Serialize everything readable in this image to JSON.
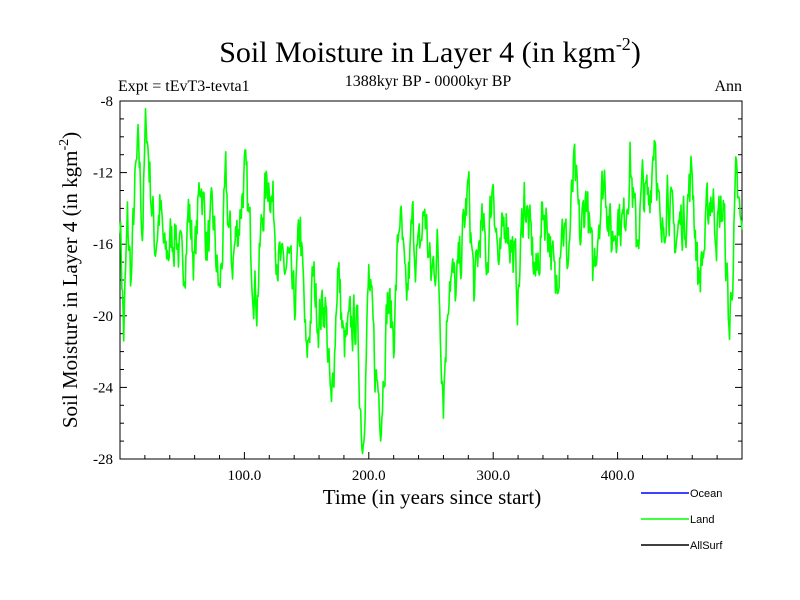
{
  "chart_data": {
    "type": "line",
    "title": "Soil Moisture in Layer 4 (in kgm",
    "title_exp": "-2",
    "title_close": ")",
    "experiment": "Expt = tEvT3-tevta1",
    "period": "1388kyr BP - 0000kyr BP",
    "season": "Ann",
    "xlabel": "Time (in years since start)",
    "ylabel": "Soil Moisture in Layer 4 (in kgm",
    "ylabel_exp": "-2",
    "ylabel_close": ")",
    "xlim": [
      0,
      500
    ],
    "ylim": [
      -28,
      -8
    ],
    "xticks": [
      {
        "v": 100,
        "label": "100.0"
      },
      {
        "v": 200,
        "label": "200.0"
      },
      {
        "v": 300,
        "label": "300.0"
      },
      {
        "v": 400,
        "label": "400.0"
      }
    ],
    "yticks": [
      {
        "v": -8,
        "label": "-8"
      },
      {
        "v": -12,
        "label": "-12"
      },
      {
        "v": -16,
        "label": "-16"
      },
      {
        "v": -20,
        "label": "-20"
      },
      {
        "v": -24,
        "label": "-24"
      },
      {
        "v": -28,
        "label": "-28"
      }
    ],
    "legend": [
      {
        "name": "Ocean",
        "color": "#0000ff"
      },
      {
        "name": "Land",
        "color": "#00ff00"
      },
      {
        "name": "AllSurf",
        "color": "#000000"
      }
    ],
    "series": [
      {
        "name": "Land",
        "color": "#00ff00",
        "anchors_x": [
          0,
          3,
          6,
          9,
          12,
          15,
          18,
          21,
          24,
          28,
          32,
          36,
          40,
          45,
          50,
          55,
          60,
          65,
          70,
          75,
          80,
          85,
          90,
          95,
          100,
          105,
          110,
          115,
          120,
          125,
          130,
          135,
          140,
          145,
          150,
          155,
          160,
          165,
          170,
          175,
          180,
          185,
          190,
          195,
          200,
          205,
          210,
          215,
          220,
          225,
          230,
          235,
          240,
          245,
          250,
          255,
          260,
          265,
          270,
          275,
          280,
          285,
          290,
          295,
          300,
          305,
          310,
          315,
          320,
          325,
          330,
          335,
          340,
          345,
          350,
          355,
          360,
          365,
          370,
          375,
          380,
          385,
          390,
          395,
          400,
          405,
          410,
          415,
          420,
          425,
          430,
          435,
          440,
          445,
          450,
          455,
          460,
          465,
          470,
          475,
          480,
          485,
          490,
          495,
          500
        ],
        "anchors_y": [
          -14,
          -21,
          -15,
          -18,
          -13,
          -11,
          -15,
          -9,
          -12,
          -16,
          -14,
          -17,
          -16,
          -15,
          -18,
          -14,
          -17,
          -12,
          -16,
          -15,
          -19,
          -13,
          -17,
          -15,
          -12,
          -16,
          -19,
          -14,
          -12,
          -15,
          -18,
          -17,
          -20,
          -15,
          -23,
          -18,
          -20,
          -19,
          -26,
          -17,
          -22,
          -21,
          -20,
          -27,
          -18,
          -23,
          -25,
          -19,
          -21,
          -14,
          -20,
          -15,
          -17,
          -14,
          -18,
          -16,
          -24,
          -17,
          -19,
          -16,
          -13,
          -19,
          -15,
          -17,
          -12,
          -18,
          -14,
          -16,
          -19,
          -13,
          -16,
          -18,
          -14,
          -15,
          -19,
          -14,
          -17,
          -12,
          -16,
          -13,
          -18,
          -14,
          -12,
          -16,
          -14,
          -15,
          -11,
          -16,
          -13,
          -14,
          -9,
          -17,
          -12,
          -16,
          -15,
          -14,
          -12,
          -18,
          -16,
          -13,
          -15,
          -14,
          -21,
          -13,
          -16
        ],
        "noise_seed": 7,
        "noise_amp": 1.4,
        "samples": 1000
      }
    ]
  }
}
